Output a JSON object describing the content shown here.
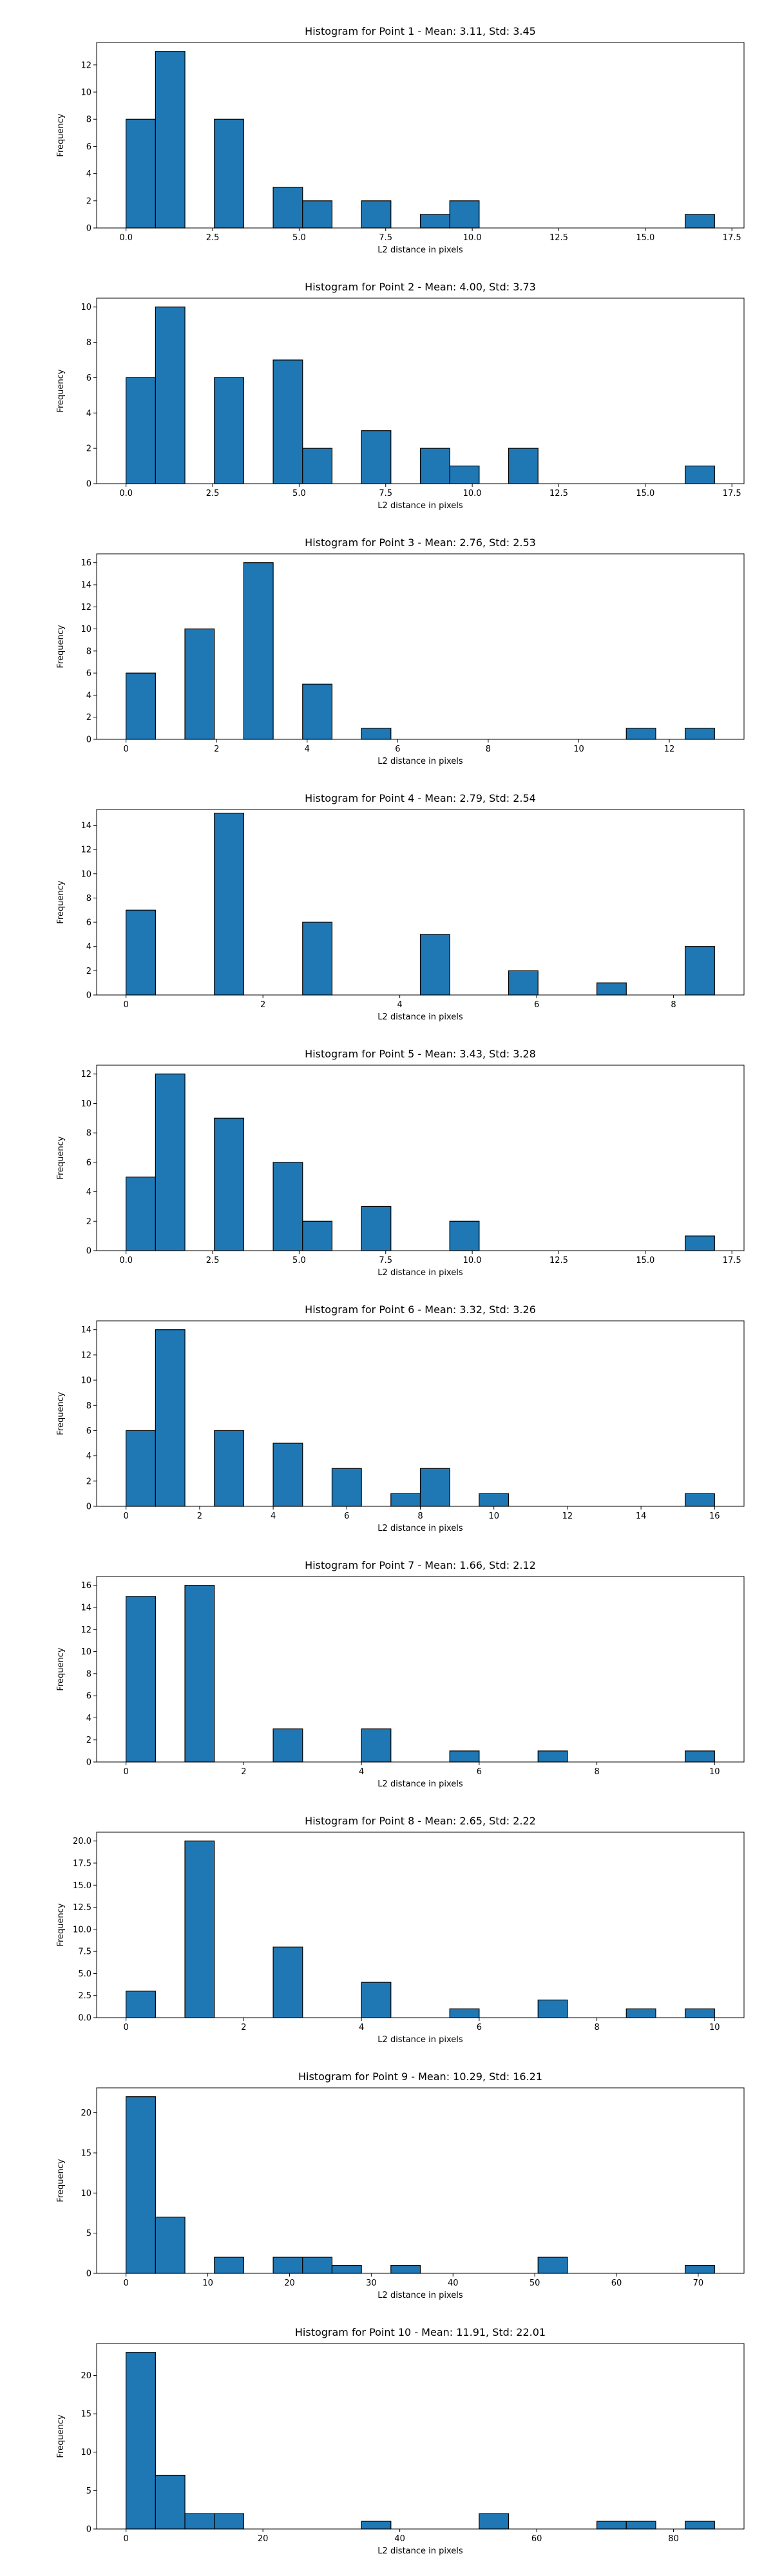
{
  "figure": {
    "background": "#ffffff",
    "bar_color": "#1f77b4",
    "bar_edge": "#000000"
  },
  "chart_data": [
    {
      "type": "bar",
      "title": "Histogram for Point 1 - Mean: 3.11, Std: 3.45",
      "xlabel": "L2 distance in pixels",
      "ylabel": "Frequency",
      "xlim": [
        -0.85,
        17.85
      ],
      "ylim": [
        0,
        13.65
      ],
      "xticks": [
        0.0,
        2.5,
        5.0,
        7.5,
        10.0,
        12.5,
        15.0,
        17.5
      ],
      "xtick_labels": [
        "0.0",
        "2.5",
        "5.0",
        "7.5",
        "10.0",
        "12.5",
        "15.0",
        "17.5"
      ],
      "yticks": [
        0,
        2,
        4,
        6,
        8,
        10,
        12
      ],
      "ytick_labels": [
        "0",
        "2",
        "4",
        "6",
        "8",
        "10",
        "12"
      ],
      "bin_edges": [
        0.0,
        0.85,
        1.7,
        2.55,
        3.4,
        4.25,
        5.1,
        5.95,
        6.8,
        7.65,
        8.5,
        9.35,
        10.2,
        11.05,
        11.9,
        12.75,
        13.6,
        14.45,
        15.3,
        16.15,
        17.0
      ],
      "values": [
        8,
        13,
        0,
        8,
        0,
        3,
        2,
        0,
        2,
        0,
        1,
        2,
        0,
        0,
        0,
        0,
        0,
        0,
        0,
        1
      ]
    },
    {
      "type": "bar",
      "title": "Histogram for Point 2 - Mean: 4.00, Std: 3.73",
      "xlabel": "L2 distance in pixels",
      "ylabel": "Frequency",
      "xlim": [
        -0.85,
        17.85
      ],
      "ylim": [
        0,
        10.5
      ],
      "xticks": [
        0.0,
        2.5,
        5.0,
        7.5,
        10.0,
        12.5,
        15.0,
        17.5
      ],
      "xtick_labels": [
        "0.0",
        "2.5",
        "5.0",
        "7.5",
        "10.0",
        "12.5",
        "15.0",
        "17.5"
      ],
      "yticks": [
        0,
        2,
        4,
        6,
        8,
        10
      ],
      "ytick_labels": [
        "0",
        "2",
        "4",
        "6",
        "8",
        "10"
      ],
      "bin_edges": [
        0.0,
        0.85,
        1.7,
        2.55,
        3.4,
        4.25,
        5.1,
        5.95,
        6.8,
        7.65,
        8.5,
        9.35,
        10.2,
        11.05,
        11.9,
        12.75,
        13.6,
        14.45,
        15.3,
        16.15,
        17.0
      ],
      "values": [
        6,
        10,
        0,
        6,
        0,
        7,
        2,
        0,
        3,
        0,
        2,
        1,
        0,
        2,
        0,
        0,
        0,
        0,
        0,
        1
      ]
    },
    {
      "type": "bar",
      "title": "Histogram for Point 3 - Mean: 2.76, Std: 2.53",
      "xlabel": "L2 distance in pixels",
      "ylabel": "Frequency",
      "xlim": [
        -0.65,
        13.65
      ],
      "ylim": [
        0,
        16.8
      ],
      "xticks": [
        0,
        2,
        4,
        6,
        8,
        10,
        12
      ],
      "xtick_labels": [
        "0",
        "2",
        "4",
        "6",
        "8",
        "10",
        "12"
      ],
      "yticks": [
        0,
        2,
        4,
        6,
        8,
        10,
        12,
        14,
        16
      ],
      "ytick_labels": [
        "0",
        "2",
        "4",
        "6",
        "8",
        "10",
        "12",
        "14",
        "16"
      ],
      "bin_edges": [
        0.0,
        0.65,
        1.3,
        1.95,
        2.6,
        3.25,
        3.9,
        4.55,
        5.2,
        5.85,
        6.5,
        7.15,
        7.8,
        8.45,
        9.1,
        9.75,
        10.4,
        11.05,
        11.7,
        12.35,
        13.0
      ],
      "values": [
        6,
        0,
        10,
        0,
        16,
        0,
        5,
        0,
        1,
        0,
        0,
        0,
        0,
        0,
        0,
        0,
        0,
        1,
        0,
        1
      ]
    },
    {
      "type": "bar",
      "title": "Histogram for Point 4 - Mean: 2.79, Std: 2.54",
      "xlabel": "L2 distance in pixels",
      "ylabel": "Frequency",
      "xlim": [
        -0.43,
        9.03
      ],
      "ylim": [
        0,
        15.3
      ],
      "xticks": [
        0,
        2,
        4,
        6,
        8
      ],
      "xtick_labels": [
        "0",
        "2",
        "4",
        "6",
        "8"
      ],
      "yticks": [
        0,
        2,
        4,
        6,
        8,
        10,
        12,
        14
      ],
      "ytick_labels": [
        "0",
        "2",
        "4",
        "6",
        "8",
        "10",
        "12",
        "14"
      ],
      "bin_edges": [
        0.0,
        0.43,
        0.86,
        1.29,
        1.72,
        2.15,
        2.58,
        3.01,
        3.44,
        3.87,
        4.3,
        4.73,
        5.16,
        5.59,
        6.02,
        6.45,
        6.88,
        7.31,
        7.74,
        8.17,
        8.6
      ],
      "values": [
        7,
        0,
        0,
        15,
        0,
        0,
        6,
        0,
        0,
        0,
        5,
        0,
        0,
        2,
        0,
        0,
        1,
        0,
        0,
        4
      ]
    },
    {
      "type": "bar",
      "title": "Histogram for Point 5 - Mean: 3.43, Std: 3.28",
      "xlabel": "L2 distance in pixels",
      "ylabel": "Frequency",
      "xlim": [
        -0.85,
        17.85
      ],
      "ylim": [
        0,
        12.6
      ],
      "xticks": [
        0.0,
        2.5,
        5.0,
        7.5,
        10.0,
        12.5,
        15.0,
        17.5
      ],
      "xtick_labels": [
        "0.0",
        "2.5",
        "5.0",
        "7.5",
        "10.0",
        "12.5",
        "15.0",
        "17.5"
      ],
      "yticks": [
        0,
        2,
        4,
        6,
        8,
        10,
        12
      ],
      "ytick_labels": [
        "0",
        "2",
        "4",
        "6",
        "8",
        "10",
        "12"
      ],
      "bin_edges": [
        0.0,
        0.85,
        1.7,
        2.55,
        3.4,
        4.25,
        5.1,
        5.95,
        6.8,
        7.65,
        8.5,
        9.35,
        10.2,
        11.05,
        11.9,
        12.75,
        13.6,
        14.45,
        15.3,
        16.15,
        17.0
      ],
      "values": [
        5,
        12,
        0,
        9,
        0,
        6,
        2,
        0,
        3,
        0,
        0,
        2,
        0,
        0,
        0,
        0,
        0,
        0,
        0,
        1
      ]
    },
    {
      "type": "bar",
      "title": "Histogram for Point 6 - Mean: 3.32, Std: 3.26",
      "xlabel": "L2 distance in pixels",
      "ylabel": "Frequency",
      "xlim": [
        -0.8,
        16.8
      ],
      "ylim": [
        0,
        14.7
      ],
      "xticks": [
        0,
        2,
        4,
        6,
        8,
        10,
        12,
        14,
        16
      ],
      "xtick_labels": [
        "0",
        "2",
        "4",
        "6",
        "8",
        "10",
        "12",
        "14",
        "16"
      ],
      "yticks": [
        0,
        2,
        4,
        6,
        8,
        10,
        12,
        14
      ],
      "ytick_labels": [
        "0",
        "2",
        "4",
        "6",
        "8",
        "10",
        "12",
        "14"
      ],
      "bin_edges": [
        0.0,
        0.8,
        1.6,
        2.4,
        3.2,
        4.0,
        4.8,
        5.6,
        6.4,
        7.2,
        8.0,
        8.8,
        9.6,
        10.4,
        11.2,
        12.0,
        12.8,
        13.6,
        14.4,
        15.2,
        16.0
      ],
      "values": [
        6,
        14,
        0,
        6,
        0,
        5,
        0,
        3,
        0,
        1,
        3,
        0,
        1,
        0,
        0,
        0,
        0,
        0,
        0,
        1
      ]
    },
    {
      "type": "bar",
      "title": "Histogram for Point 7 - Mean: 1.66, Std: 2.12",
      "xlabel": "L2 distance in pixels",
      "ylabel": "Frequency",
      "xlim": [
        -0.5,
        10.5
      ],
      "ylim": [
        0,
        16.8
      ],
      "xticks": [
        0,
        2,
        4,
        6,
        8,
        10
      ],
      "xtick_labels": [
        "0",
        "2",
        "4",
        "6",
        "8",
        "10"
      ],
      "yticks": [
        0,
        2,
        4,
        6,
        8,
        10,
        12,
        14,
        16
      ],
      "ytick_labels": [
        "0",
        "2",
        "4",
        "6",
        "8",
        "10",
        "12",
        "14",
        "16"
      ],
      "bin_edges": [
        0.0,
        0.5,
        1.0,
        1.5,
        2.0,
        2.5,
        3.0,
        3.5,
        4.0,
        4.5,
        5.0,
        5.5,
        6.0,
        6.5,
        7.0,
        7.5,
        8.0,
        8.5,
        9.0,
        9.5,
        10.0
      ],
      "values": [
        15,
        0,
        16,
        0,
        0,
        3,
        0,
        0,
        3,
        0,
        0,
        1,
        0,
        0,
        1,
        0,
        0,
        0,
        0,
        1
      ]
    },
    {
      "type": "bar",
      "title": "Histogram for Point 8 - Mean: 2.65, Std: 2.22",
      "xlabel": "L2 distance in pixels",
      "ylabel": "Frequency",
      "xlim": [
        -0.5,
        10.5
      ],
      "ylim": [
        0,
        21.0
      ],
      "xticks": [
        0,
        2,
        4,
        6,
        8,
        10
      ],
      "xtick_labels": [
        "0",
        "2",
        "4",
        "6",
        "8",
        "10"
      ],
      "yticks": [
        0,
        2.5,
        5.0,
        7.5,
        10.0,
        12.5,
        15.0,
        17.5,
        20.0
      ],
      "ytick_labels": [
        "0.0",
        "2.5",
        "5.0",
        "7.5",
        "10.0",
        "12.5",
        "15.0",
        "17.5",
        "20.0"
      ],
      "bin_edges": [
        0.0,
        0.5,
        1.0,
        1.5,
        2.0,
        2.5,
        3.0,
        3.5,
        4.0,
        4.5,
        5.0,
        5.5,
        6.0,
        6.5,
        7.0,
        7.5,
        8.0,
        8.5,
        9.0,
        9.5,
        10.0
      ],
      "values": [
        3,
        0,
        20,
        0,
        0,
        8,
        0,
        0,
        4,
        0,
        0,
        1,
        0,
        0,
        2,
        0,
        0,
        1,
        0,
        1
      ]
    },
    {
      "type": "bar",
      "title": "Histogram for Point 9 - Mean: 10.29, Std: 16.21",
      "xlabel": "L2 distance in pixels",
      "ylabel": "Frequency",
      "xlim": [
        -3.6,
        75.6
      ],
      "ylim": [
        0,
        23.1
      ],
      "xticks": [
        0,
        10,
        20,
        30,
        40,
        50,
        60,
        70
      ],
      "xtick_labels": [
        "0",
        "10",
        "20",
        "30",
        "40",
        "50",
        "60",
        "70"
      ],
      "yticks": [
        0,
        5,
        10,
        15,
        20
      ],
      "ytick_labels": [
        "0",
        "5",
        "10",
        "15",
        "20"
      ],
      "bin_edges": [
        0.0,
        3.6,
        7.2,
        10.8,
        14.4,
        18.0,
        21.6,
        25.2,
        28.8,
        32.4,
        36.0,
        39.6,
        43.2,
        46.8,
        50.4,
        54.0,
        57.6,
        61.2,
        64.8,
        68.4,
        72.0
      ],
      "values": [
        22,
        7,
        0,
        2,
        0,
        2,
        2,
        1,
        0,
        1,
        0,
        0,
        0,
        0,
        2,
        0,
        0,
        0,
        0,
        1
      ]
    },
    {
      "type": "bar",
      "title": "Histogram for Point 10 - Mean: 11.91, Std: 22.01",
      "xlabel": "L2 distance in pixels",
      "ylabel": "Frequency",
      "xlim": [
        -4.3,
        90.3
      ],
      "ylim": [
        0,
        24.15
      ],
      "xticks": [
        0,
        20,
        40,
        60,
        80
      ],
      "xtick_labels": [
        "0",
        "20",
        "40",
        "60",
        "80"
      ],
      "yticks": [
        0,
        5,
        10,
        15,
        20
      ],
      "ytick_labels": [
        "0",
        "5",
        "10",
        "15",
        "20"
      ],
      "bin_edges": [
        0.0,
        4.3,
        8.6,
        12.9,
        17.2,
        21.5,
        25.8,
        30.1,
        34.4,
        38.7,
        43.0,
        47.3,
        51.6,
        55.9,
        60.2,
        64.5,
        68.8,
        73.1,
        77.4,
        81.7,
        86.0
      ],
      "values": [
        23,
        7,
        2,
        2,
        0,
        0,
        0,
        0,
        1,
        0,
        0,
        0,
        2,
        0,
        0,
        0,
        1,
        1,
        0,
        1
      ]
    }
  ]
}
